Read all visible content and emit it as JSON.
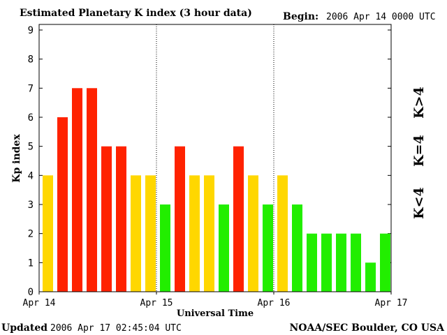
{
  "header": {
    "title": "Estimated Planetary K index (3 hour data)",
    "begin_label": "Begin:",
    "begin_value": "2006 Apr 14 0000 UTC"
  },
  "footer": {
    "updated_label": "Updated",
    "updated_value": "2006 Apr 17 02:45:04 UTC",
    "source": "NOAA/SEC Boulder, CO USA"
  },
  "legend": {
    "high": "K>4",
    "mid": "K=4",
    "low": "K<4"
  },
  "colors": {
    "high": "#ff2200",
    "mid": "#ffd700",
    "low": "#22ee00"
  },
  "chart_data": {
    "type": "bar",
    "xlabel": "Universal Time",
    "ylabel": "Kp index",
    "ylim": [
      0,
      9
    ],
    "yticks": [
      0,
      1,
      2,
      3,
      4,
      5,
      6,
      7,
      8,
      9
    ],
    "day_labels": [
      "Apr 14",
      "Apr 15",
      "Apr 16",
      "Apr 17"
    ],
    "values": [
      4,
      6,
      7,
      7,
      5,
      5,
      4,
      4,
      3,
      5,
      4,
      4,
      3,
      5,
      4,
      3,
      4,
      3,
      2,
      2,
      2,
      2,
      1,
      2
    ],
    "grid": false
  }
}
